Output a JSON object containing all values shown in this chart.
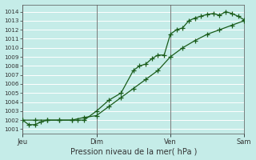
{
  "xlabel": "Pression niveau de la mer( hPa )",
  "background_color": "#c5ece8",
  "grid_color": "#aad8d4",
  "white_grid_color": "#ffffff",
  "line_color": "#1a5c1a",
  "ylim": [
    1000.5,
    1014.8
  ],
  "yticks": [
    1001,
    1002,
    1003,
    1004,
    1005,
    1006,
    1007,
    1008,
    1009,
    1010,
    1011,
    1012,
    1013,
    1014
  ],
  "day_labels": [
    "Jeu",
    "Dim",
    "Ven",
    "Sam"
  ],
  "day_positions": [
    0.0,
    0.333,
    0.667,
    1.0
  ],
  "xlim_hours": [
    0,
    216
  ],
  "day_hours": [
    0,
    72,
    144,
    216
  ],
  "line1_x": [
    0,
    6,
    12,
    18,
    24,
    36,
    48,
    54,
    60,
    72,
    84,
    96,
    108,
    114,
    120,
    126,
    132,
    138,
    144,
    150,
    156,
    162,
    168,
    174,
    180,
    186,
    192,
    198,
    204,
    210,
    216
  ],
  "line1_y": [
    1002.0,
    1001.5,
    1001.5,
    1001.8,
    1002.0,
    1002.0,
    1002.0,
    1002.0,
    1002.0,
    1003.0,
    1004.2,
    1005.0,
    1007.5,
    1008.0,
    1008.2,
    1008.8,
    1009.2,
    1009.2,
    1011.5,
    1012.0,
    1012.2,
    1013.0,
    1013.3,
    1013.5,
    1013.7,
    1013.8,
    1013.6,
    1014.0,
    1013.8,
    1013.5,
    1013.1
  ],
  "line2_x": [
    0,
    12,
    24,
    36,
    48,
    60,
    72,
    84,
    96,
    108,
    120,
    132,
    144,
    156,
    168,
    180,
    192,
    204,
    216
  ],
  "line2_y": [
    1002.0,
    1002.0,
    1002.0,
    1002.0,
    1002.0,
    1002.3,
    1002.5,
    1003.5,
    1004.5,
    1005.5,
    1006.5,
    1007.5,
    1009.0,
    1010.0,
    1010.8,
    1011.5,
    1012.0,
    1012.5,
    1013.0
  ]
}
